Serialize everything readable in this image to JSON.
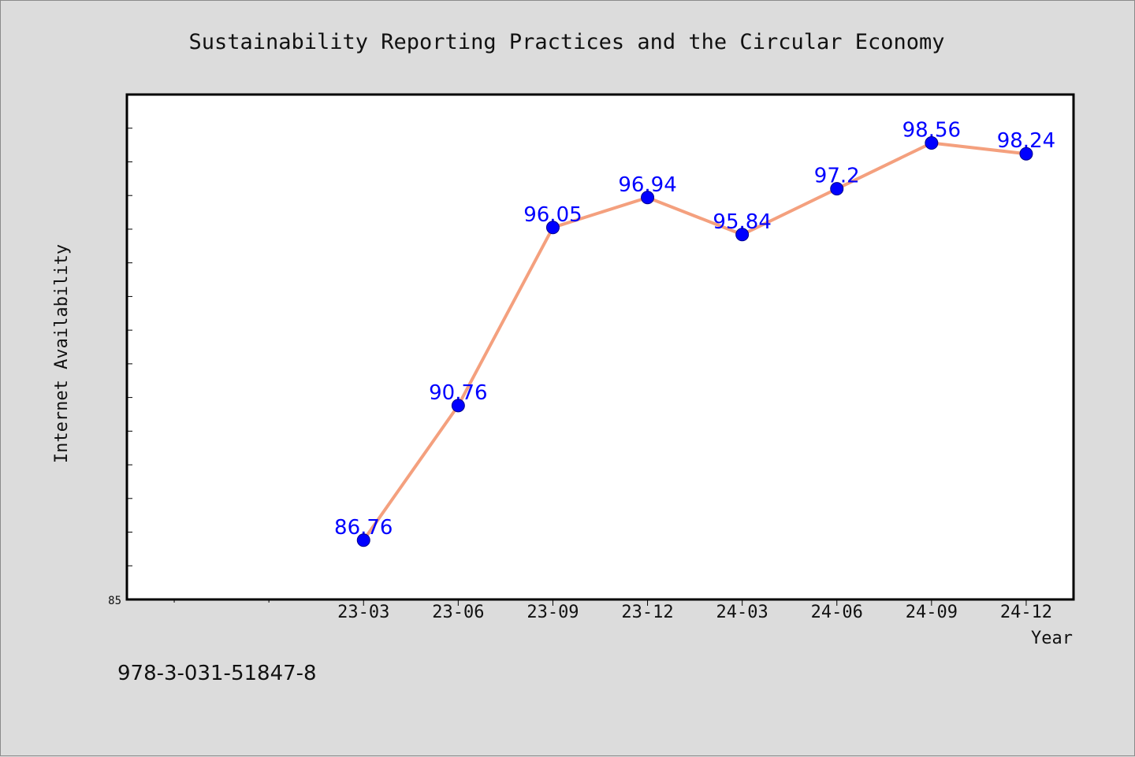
{
  "chart_data": {
    "type": "line",
    "title": "Sustainability Reporting Practices and the Circular Economy",
    "xlabel": "Year",
    "ylabel": "Internet Availability",
    "categories": [
      "23-03",
      "23-06",
      "23-09",
      "23-12",
      "24-03",
      "24-06",
      "24-09",
      "24-12"
    ],
    "series": [
      {
        "values": [
          86.76,
          90.76,
          96.05,
          96.94,
          95.84,
          97.2,
          98.56,
          98.24
        ],
        "data_labels": [
          "86.76",
          "90.76",
          "96.05",
          "96.94",
          "95.84",
          "97.2",
          "98.56",
          "98.24"
        ]
      }
    ],
    "ylim": [
      85,
      100
    ],
    "ytick_labels": [
      "85"
    ],
    "grid": false,
    "line_color": "#f4a07e",
    "marker_color": "#0000ff",
    "label_color": "#0000ff",
    "plot_background": "#ffffff",
    "figure_background": "#dcdcdc"
  },
  "footer": {
    "isbn": "978-3-031-51847-8"
  }
}
